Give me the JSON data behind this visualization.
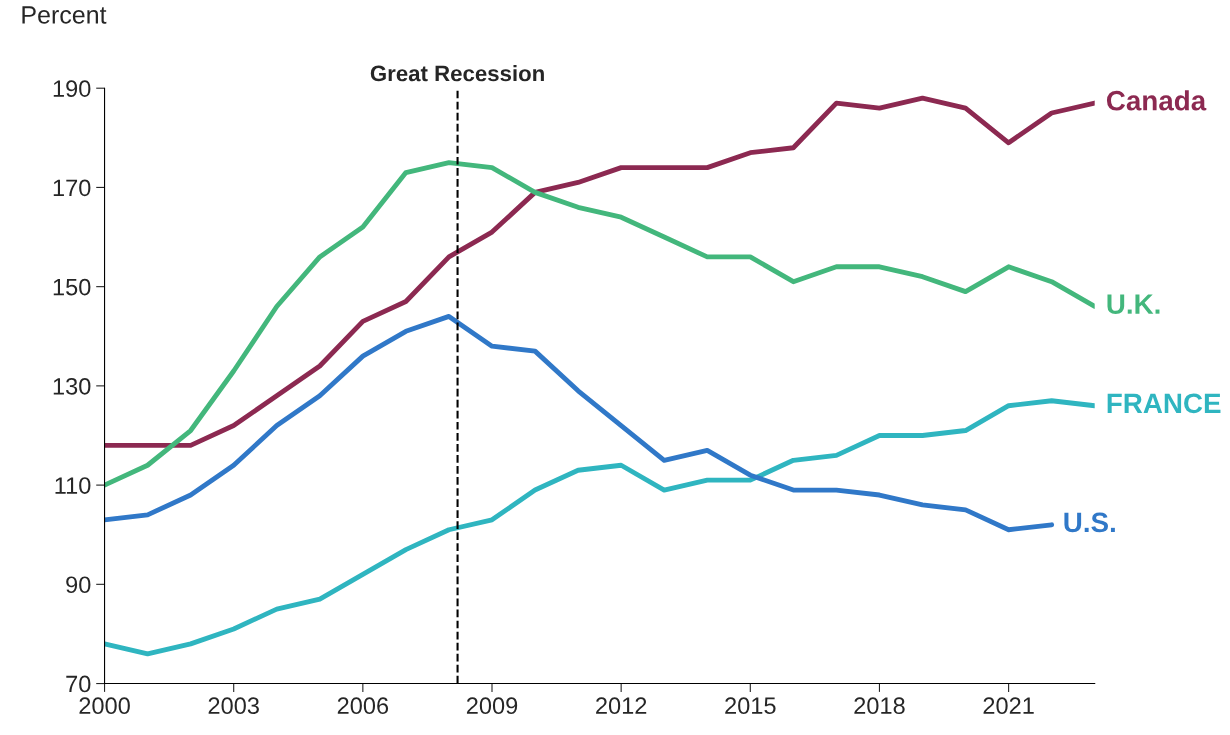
{
  "chart_data": {
    "type": "line",
    "ylabel": "Percent",
    "x": [
      2000,
      2001,
      2002,
      2003,
      2004,
      2005,
      2006,
      2007,
      2008,
      2009,
      2010,
      2011,
      2012,
      2013,
      2014,
      2015,
      2016,
      2017,
      2018,
      2019,
      2020,
      2021,
      2022,
      2023
    ],
    "series": [
      {
        "name": "Canada",
        "color": "#8c2951",
        "values": [
          118,
          118,
          118,
          122,
          128,
          134,
          143,
          147,
          156,
          161,
          169,
          171,
          174,
          174,
          174,
          177,
          178,
          187,
          186,
          188,
          186,
          179,
          185,
          187
        ]
      },
      {
        "name": "U.K.",
        "color": "#43b77c",
        "values": [
          110,
          114,
          121,
          133,
          146,
          156,
          162,
          173,
          175,
          174,
          169,
          166,
          164,
          160,
          156,
          156,
          151,
          154,
          154,
          152,
          149,
          154,
          151,
          146
        ]
      },
      {
        "name": "FRANCE",
        "color": "#2fb5c0",
        "values": [
          78,
          76,
          78,
          81,
          85,
          87,
          92,
          97,
          101,
          103,
          109,
          113,
          114,
          109,
          111,
          111,
          115,
          116,
          120,
          120,
          121,
          126,
          127,
          126
        ]
      },
      {
        "name": "U.S.",
        "color": "#3078c8",
        "values": [
          103,
          104,
          108,
          114,
          122,
          128,
          136,
          141,
          144,
          138,
          137,
          129,
          122,
          115,
          117,
          112,
          109,
          109,
          108,
          106,
          105,
          101,
          102,
          null
        ]
      }
    ],
    "xlim": [
      2000,
      2023
    ],
    "xticks": [
      2000,
      2003,
      2006,
      2009,
      2012,
      2015,
      2018,
      2021
    ],
    "ylim": [
      70,
      190
    ],
    "yticks": [
      70,
      90,
      110,
      130,
      150,
      170,
      190
    ],
    "ref_lines": [
      {
        "axis": "x",
        "value": 2008.2,
        "label": "Great Recession",
        "color": "#000000",
        "line_style": "dashed"
      }
    ],
    "grid": false,
    "legend": false,
    "marker": "none",
    "line_style": "solid"
  }
}
